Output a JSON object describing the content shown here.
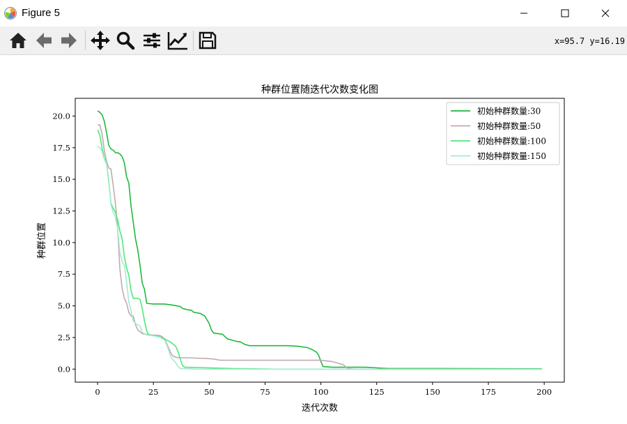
{
  "window": {
    "title": "Figure 5",
    "controls": [
      "minimize-icon",
      "maximize-icon",
      "close-icon"
    ]
  },
  "toolbar": {
    "buttons": [
      {
        "name": "home-button",
        "icon": "home-icon"
      },
      {
        "name": "back-button",
        "icon": "arrow-left-icon"
      },
      {
        "name": "forward-button",
        "icon": "arrow-right-icon"
      },
      {
        "name": "pan-button",
        "icon": "move-icon"
      },
      {
        "name": "zoom-button",
        "icon": "magnifier-icon"
      },
      {
        "name": "configure-subplots-button",
        "icon": "sliders-icon"
      },
      {
        "name": "edit-axis-button",
        "icon": "line-chart-icon"
      },
      {
        "name": "save-button",
        "icon": "floppy-icon"
      }
    ],
    "coords": "x=95.7 y=16.19"
  },
  "chart_data": {
    "type": "line",
    "title": "种群位置随迭代次数变化图",
    "xlabel": "迭代次数",
    "ylabel": "种群位置",
    "xlim": [
      -10,
      209
    ],
    "ylim": [
      -1.03,
      21.4
    ],
    "xticks": [
      0,
      25,
      50,
      75,
      100,
      125,
      150,
      175,
      200
    ],
    "yticks": [
      0.0,
      2.5,
      5.0,
      7.5,
      10.0,
      12.5,
      15.0,
      17.5,
      20.0
    ],
    "xtick_labels": [
      "0",
      "25",
      "50",
      "75",
      "100",
      "125",
      "150",
      "175",
      "200"
    ],
    "ytick_labels": [
      "0.0",
      "2.5",
      "5.0",
      "7.5",
      "10.0",
      "12.5",
      "15.0",
      "17.5",
      "20.0"
    ],
    "grid": false,
    "legend_position": "top-right",
    "series": [
      {
        "name": "初始种群数量:30",
        "color": "#1eb83c",
        "points": [
          [
            0,
            20.4
          ],
          [
            1,
            20.3
          ],
          [
            2,
            20.1
          ],
          [
            3,
            19.6
          ],
          [
            4,
            18.7
          ],
          [
            5,
            17.7
          ],
          [
            6,
            17.4
          ],
          [
            7,
            17.3
          ],
          [
            8,
            17.1
          ],
          [
            9,
            17.1
          ],
          [
            10,
            17.0
          ],
          [
            11,
            16.8
          ],
          [
            12,
            16.3
          ],
          [
            13,
            15.2
          ],
          [
            14,
            14.7
          ],
          [
            15,
            12.9
          ],
          [
            16,
            11.6
          ],
          [
            17,
            10.3
          ],
          [
            18,
            9.4
          ],
          [
            19,
            8.2
          ],
          [
            20,
            6.8
          ],
          [
            21,
            6.3
          ],
          [
            22,
            5.2
          ],
          [
            25,
            5.15
          ],
          [
            30,
            5.15
          ],
          [
            34,
            5.05
          ],
          [
            37,
            4.95
          ],
          [
            38,
            4.8
          ],
          [
            40,
            4.7
          ],
          [
            42,
            4.65
          ],
          [
            43,
            4.5
          ],
          [
            46,
            4.4
          ],
          [
            48,
            4.2
          ],
          [
            49,
            3.9
          ],
          [
            50,
            3.6
          ],
          [
            51,
            3.1
          ],
          [
            52,
            2.85
          ],
          [
            56,
            2.75
          ],
          [
            58,
            2.4
          ],
          [
            60,
            2.3
          ],
          [
            62,
            2.2
          ],
          [
            64,
            2.15
          ],
          [
            66,
            1.95
          ],
          [
            68,
            1.85
          ],
          [
            75,
            1.85
          ],
          [
            85,
            1.85
          ],
          [
            90,
            1.8
          ],
          [
            94,
            1.7
          ],
          [
            96,
            1.55
          ],
          [
            98,
            1.35
          ],
          [
            99,
            1.1
          ],
          [
            100,
            0.6
          ],
          [
            101,
            0.2
          ],
          [
            105,
            0.15
          ],
          [
            120,
            0.15
          ],
          [
            125,
            0.1
          ],
          [
            130,
            0.05
          ],
          [
            150,
            0.05
          ],
          [
            199,
            0.03
          ]
        ]
      },
      {
        "name": "初始种群数量:50",
        "color": "#c2aaaf",
        "points": [
          [
            0,
            19.3
          ],
          [
            1,
            19.3
          ],
          [
            2,
            18.6
          ],
          [
            3,
            17.3
          ],
          [
            4,
            16.4
          ],
          [
            5,
            15.9
          ],
          [
            6,
            15.8
          ],
          [
            7,
            14.5
          ],
          [
            8,
            13.1
          ],
          [
            9,
            11.1
          ],
          [
            10,
            7.9
          ],
          [
            11,
            6.4
          ],
          [
            12,
            5.6
          ],
          [
            13,
            5.2
          ],
          [
            14,
            4.5
          ],
          [
            15,
            4.2
          ],
          [
            16,
            4.2
          ],
          [
            17,
            3.5
          ],
          [
            18,
            3.1
          ],
          [
            19,
            2.95
          ],
          [
            20,
            2.8
          ],
          [
            24,
            2.7
          ],
          [
            28,
            2.65
          ],
          [
            29,
            2.55
          ],
          [
            30,
            2.4
          ],
          [
            31,
            2.0
          ],
          [
            32,
            1.6
          ],
          [
            33,
            1.2
          ],
          [
            34,
            1.0
          ],
          [
            36,
            0.9
          ],
          [
            40,
            0.9
          ],
          [
            48,
            0.85
          ],
          [
            52,
            0.8
          ],
          [
            55,
            0.7
          ],
          [
            60,
            0.7
          ],
          [
            100,
            0.7
          ],
          [
            105,
            0.6
          ],
          [
            108,
            0.45
          ],
          [
            110,
            0.35
          ],
          [
            112,
            0.05
          ],
          [
            115,
            0.0
          ],
          [
            199,
            0.0
          ]
        ]
      },
      {
        "name": "初始种群数量:100",
        "color": "#4ee87a",
        "points": [
          [
            0,
            18.9
          ],
          [
            1,
            18.5
          ],
          [
            2,
            17.5
          ],
          [
            3,
            16.7
          ],
          [
            4,
            16.3
          ],
          [
            5,
            14.8
          ],
          [
            6,
            13.1
          ],
          [
            7,
            12.7
          ],
          [
            8,
            12.4
          ],
          [
            9,
            11.8
          ],
          [
            10,
            10.9
          ],
          [
            11,
            10.3
          ],
          [
            12,
            8.9
          ],
          [
            13,
            8.0
          ],
          [
            14,
            7.4
          ],
          [
            15,
            6.2
          ],
          [
            16,
            5.6
          ],
          [
            18,
            5.6
          ],
          [
            19,
            5.5
          ],
          [
            20,
            4.8
          ],
          [
            21,
            3.8
          ],
          [
            22,
            3.0
          ],
          [
            23,
            2.7
          ],
          [
            27,
            2.6
          ],
          [
            30,
            2.4
          ],
          [
            33,
            2.1
          ],
          [
            35,
            1.8
          ],
          [
            36,
            1.4
          ],
          [
            37,
            0.8
          ],
          [
            38,
            0.3
          ],
          [
            39,
            0.15
          ],
          [
            50,
            0.1
          ],
          [
            60,
            0.05
          ],
          [
            80,
            0.0
          ],
          [
            199,
            0.0
          ]
        ]
      },
      {
        "name": "初始种群数量:150",
        "color": "#a5ead0",
        "points": [
          [
            0,
            17.6
          ],
          [
            1,
            17.5
          ],
          [
            2,
            17.2
          ],
          [
            3,
            16.6
          ],
          [
            4,
            16.2
          ],
          [
            5,
            15.0
          ],
          [
            6,
            13.0
          ],
          [
            7,
            12.4
          ],
          [
            8,
            12.0
          ],
          [
            9,
            11.1
          ],
          [
            10,
            9.2
          ],
          [
            11,
            8.5
          ],
          [
            12,
            8.2
          ],
          [
            13,
            6.9
          ],
          [
            14,
            5.3
          ],
          [
            15,
            4.6
          ],
          [
            16,
            3.8
          ],
          [
            17,
            3.6
          ],
          [
            18,
            3.5
          ],
          [
            19,
            3.4
          ],
          [
            20,
            2.9
          ],
          [
            22,
            2.7
          ],
          [
            26,
            2.6
          ],
          [
            28,
            2.5
          ],
          [
            30,
            2.3
          ],
          [
            31,
            1.9
          ],
          [
            32,
            1.4
          ],
          [
            33,
            0.9
          ],
          [
            34,
            0.7
          ],
          [
            35,
            0.5
          ],
          [
            36,
            0.2
          ],
          [
            37,
            0.05
          ],
          [
            45,
            0.0
          ],
          [
            199,
            0.0
          ]
        ]
      }
    ]
  }
}
